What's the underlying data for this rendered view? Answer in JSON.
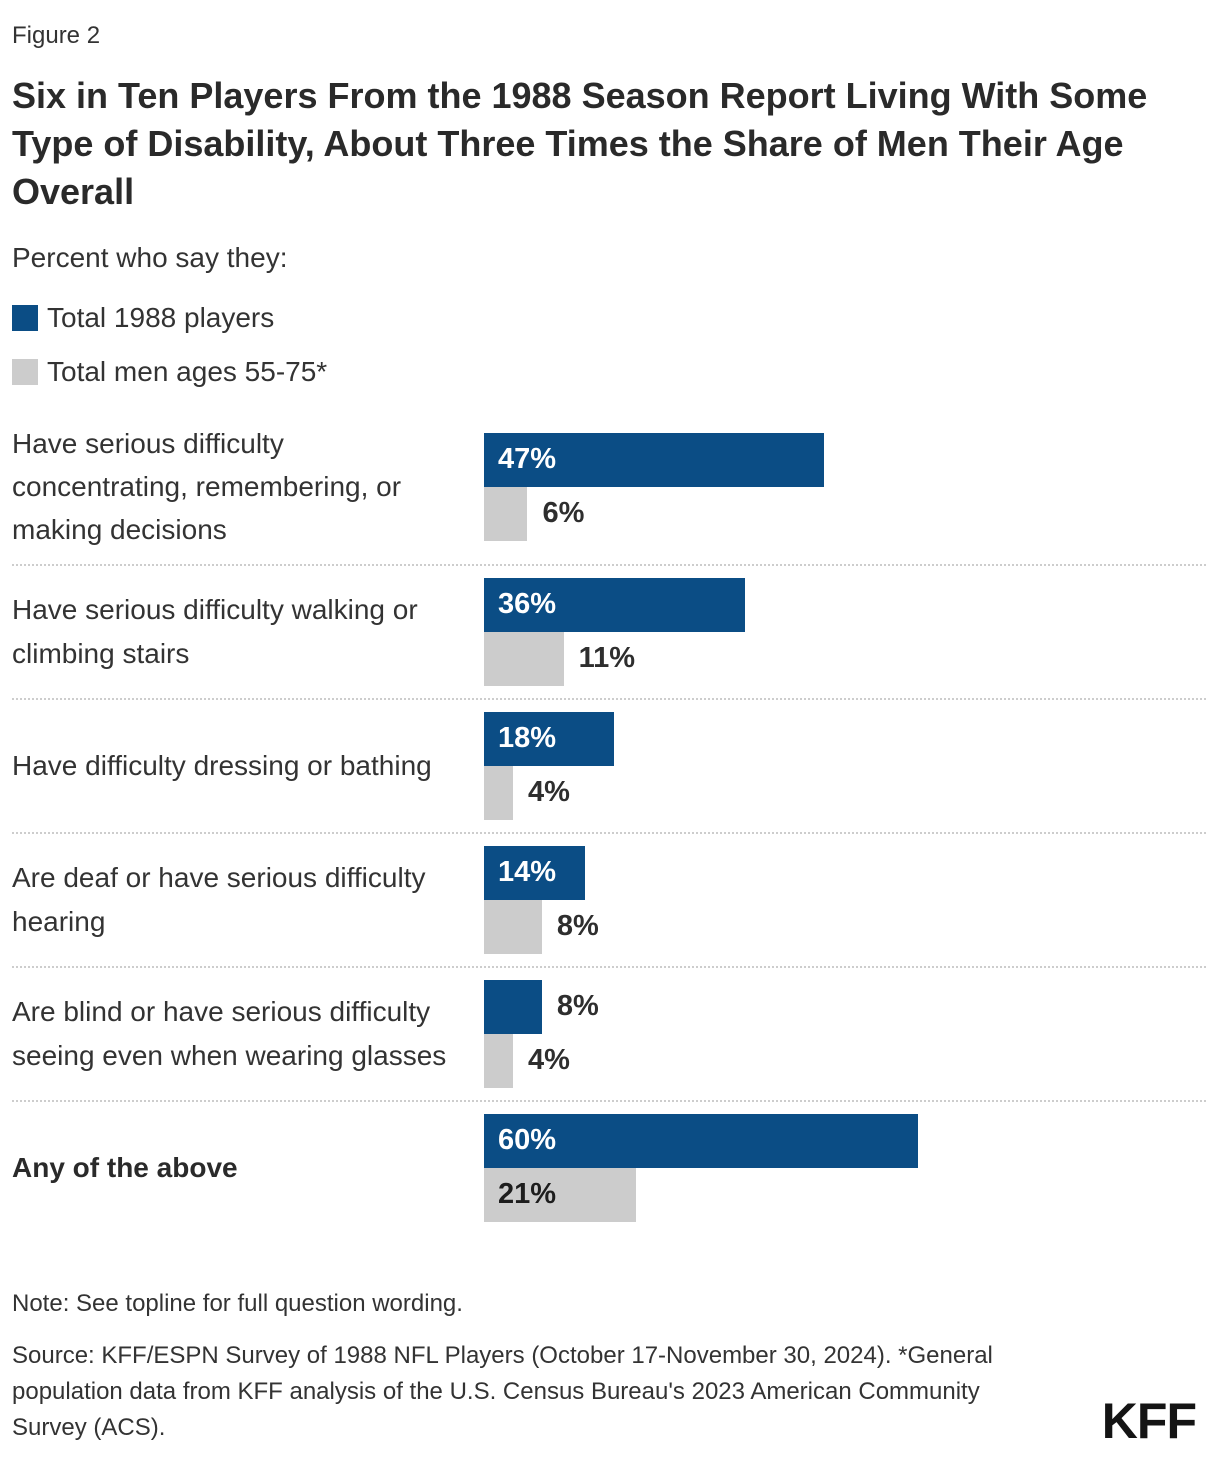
{
  "figure_label": "Figure 2",
  "title": "Six in Ten Players From the 1988 Season Report Living With Some Type of Disability, About Three Times the Share of Men Their Age Overall",
  "subtitle": "Percent who say they:",
  "legend": [
    {
      "label": "Total 1988 players",
      "color": "#0b4d85"
    },
    {
      "label": "Total men ages 55-75*",
      "color": "#cccccc"
    }
  ],
  "chart_data": {
    "type": "bar",
    "orientation": "horizontal",
    "title": "Six in Ten Players From the 1988 Season Report Living With Some Type of Disability, About Three Times the Share of Men Their Age Overall",
    "categories": [
      "Have serious difficulty concentrating, remembering, or making decisions",
      "Have serious difficulty walking or climbing stairs",
      "Have difficulty dressing or bathing",
      "Are deaf or have serious difficulty hearing",
      "Are blind or have serious difficulty seeing even when wearing glasses",
      "Any of the above"
    ],
    "emphasized_category_index": 5,
    "series": [
      {
        "name": "Total 1988 players",
        "color": "#0b4d85",
        "values": [
          47,
          36,
          18,
          14,
          8,
          60
        ]
      },
      {
        "name": "Total men ages 55-75*",
        "color": "#cccccc",
        "values": [
          6,
          11,
          4,
          8,
          4,
          21
        ]
      }
    ],
    "value_suffix": "%",
    "xlim": [
      0,
      100
    ],
    "grid": false,
    "legend_position": "top-left"
  },
  "note": "Note: See topline for full question wording.",
  "source": "Source: KFF/ESPN Survey of 1988 NFL Players (October 17-November 30, 2024). *General population data from KFF analysis of the U.S. Census Bureau's 2023 American Community Survey (ACS).",
  "logo": "KFF"
}
